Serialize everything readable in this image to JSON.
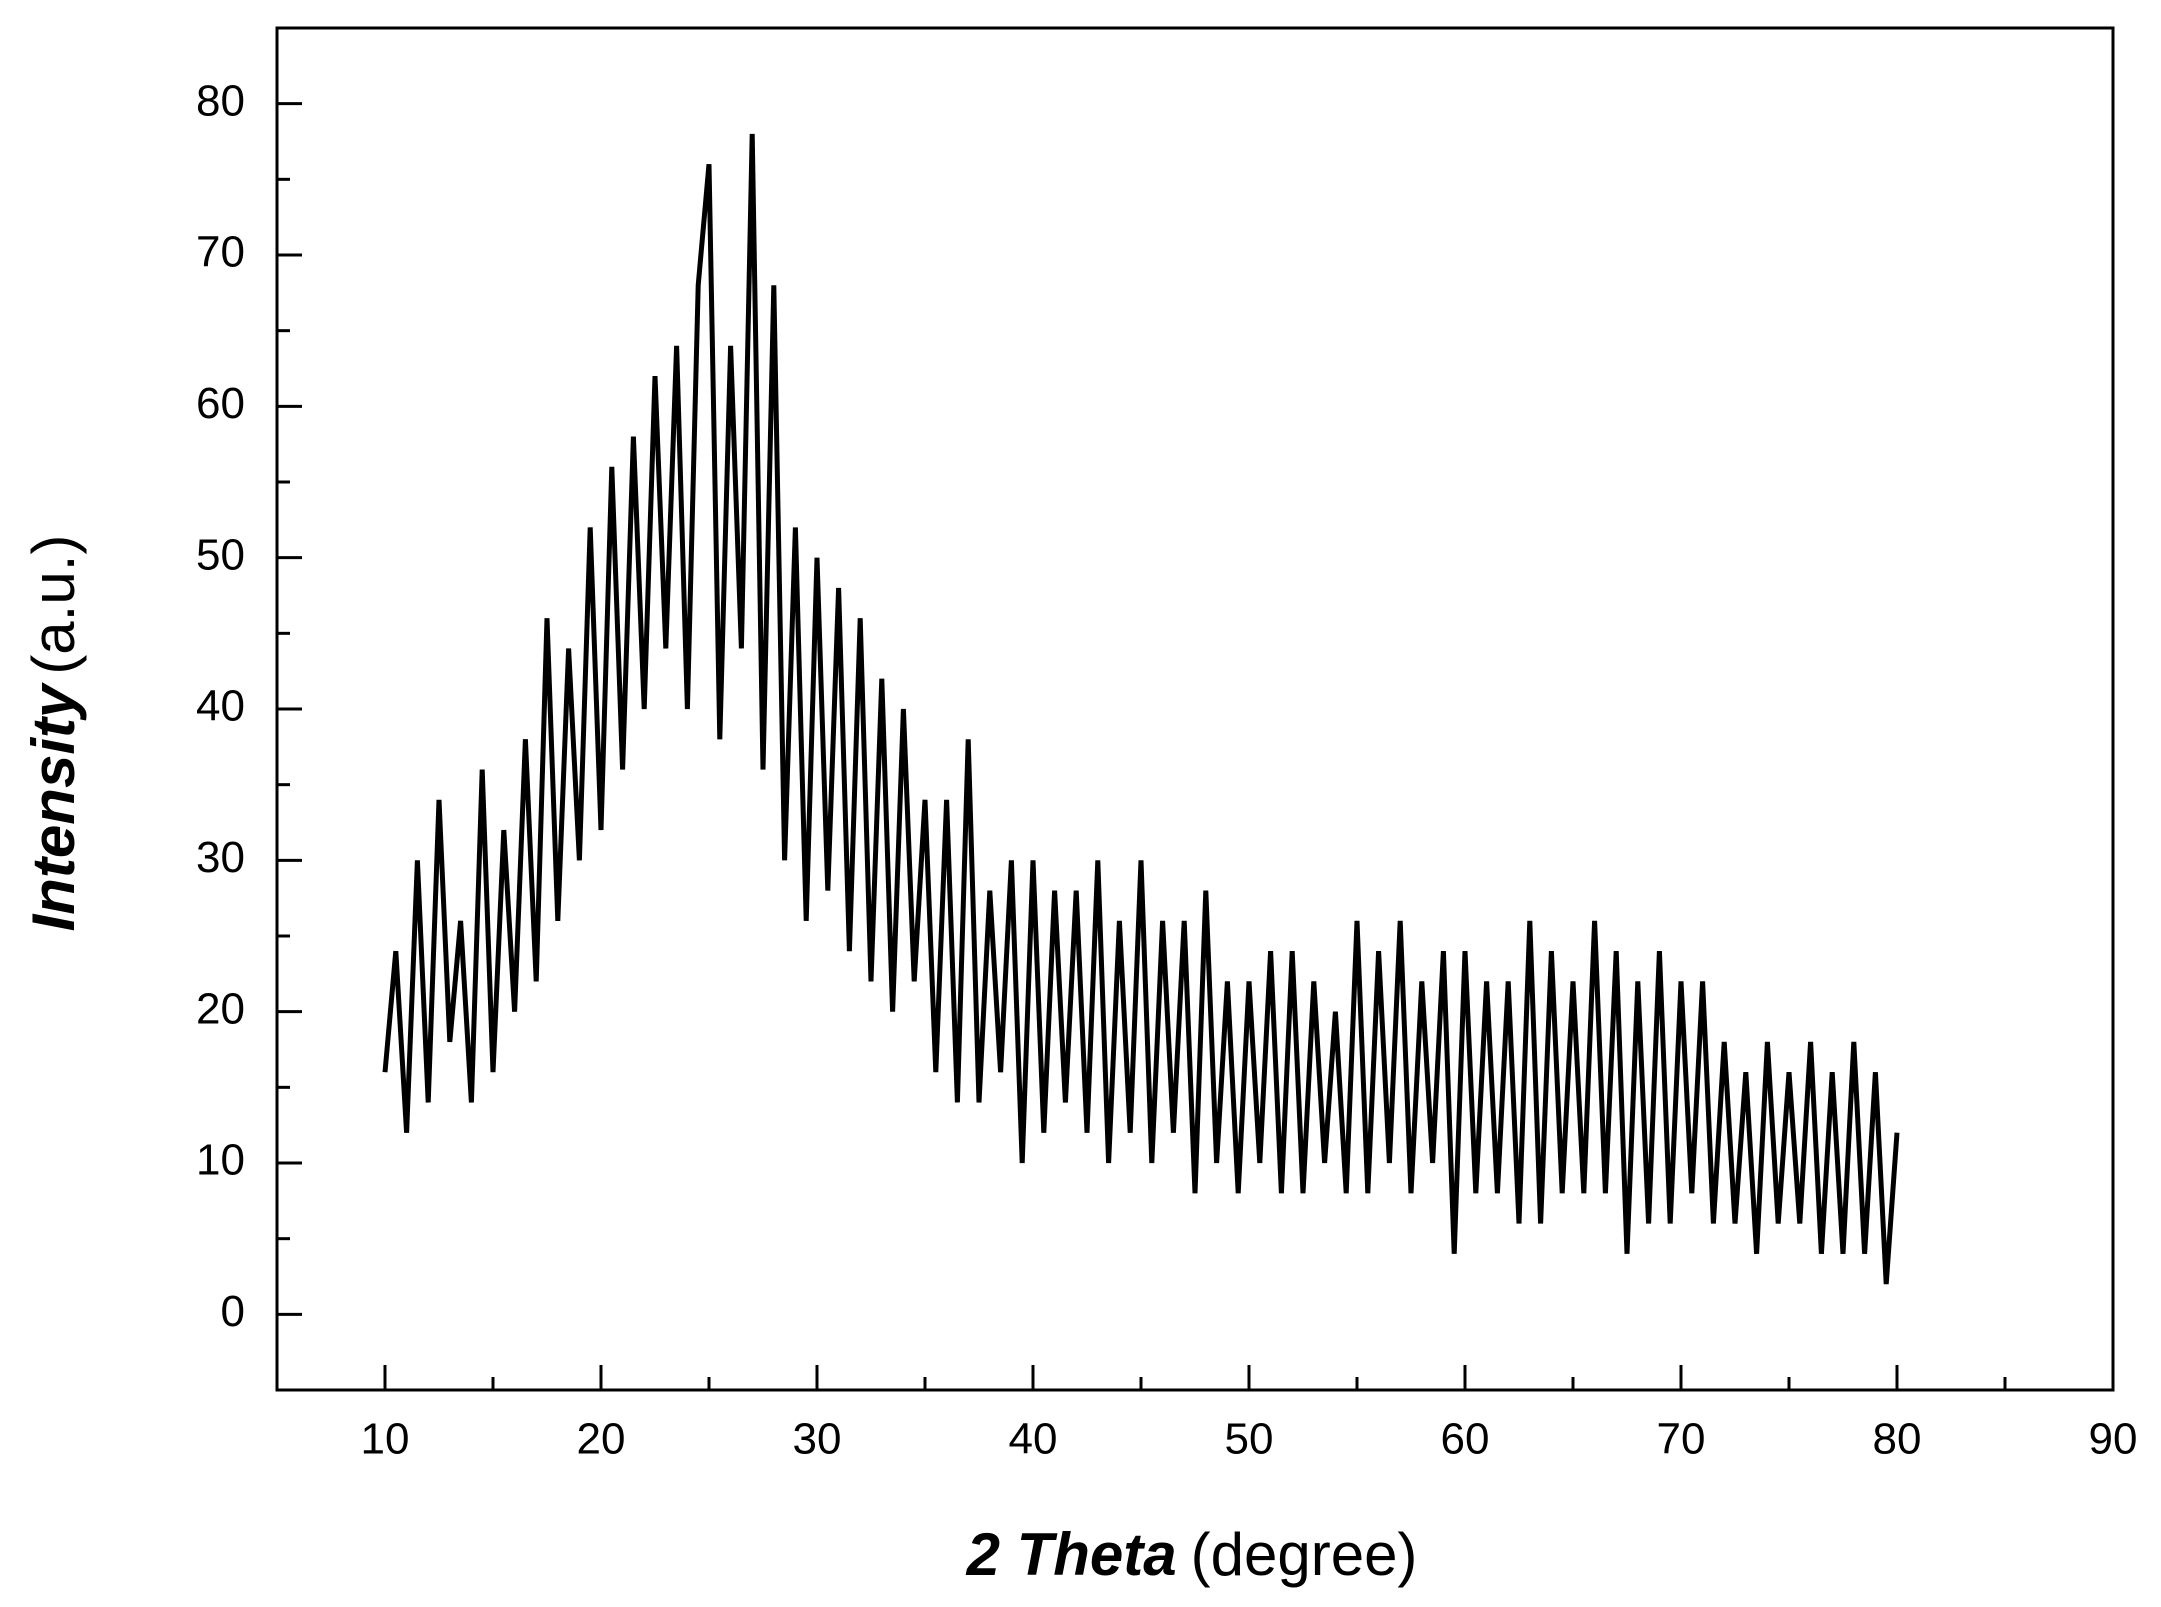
{
  "chart_data": {
    "type": "line",
    "x_label": "2 Theta",
    "x_label_unit": "(degree)",
    "y_label": "Intensity",
    "y_label_unit": "(a.u.)",
    "xlim": [
      5,
      90
    ],
    "xticks": [
      10,
      20,
      30,
      40,
      50,
      60,
      70,
      80,
      90
    ],
    "xminorticks": [
      15,
      25,
      35,
      45,
      55,
      65,
      75,
      85
    ],
    "ylim": [
      -5,
      85
    ],
    "yticks": [
      0,
      10,
      20,
      30,
      40,
      50,
      60,
      70,
      80
    ],
    "yminorticks": [
      5,
      15,
      25,
      35,
      45,
      55,
      65,
      75
    ],
    "grid": false,
    "x": [
      10,
      10.5,
      11,
      11.5,
      12,
      12.5,
      13,
      13.5,
      14,
      14.5,
      15,
      15.5,
      16,
      16.5,
      17,
      17.5,
      18,
      18.5,
      19,
      19.5,
      20,
      20.5,
      21,
      21.5,
      22,
      22.5,
      23,
      23.5,
      24,
      24.5,
      25,
      25.5,
      26,
      26.5,
      27,
      27.5,
      28,
      28.5,
      29,
      29.5,
      30,
      30.5,
      31,
      31.5,
      32,
      32.5,
      33,
      33.5,
      34,
      34.5,
      35,
      35.5,
      36,
      36.5,
      37,
      37.5,
      38,
      38.5,
      39,
      39.5,
      40,
      40.5,
      41,
      41.5,
      42,
      42.5,
      43,
      43.5,
      44,
      44.5,
      45,
      45.5,
      46,
      46.5,
      47,
      47.5,
      48,
      48.5,
      49,
      49.5,
      50,
      50.5,
      51,
      51.5,
      52,
      52.5,
      53,
      53.5,
      54,
      54.5,
      55,
      55.5,
      56,
      56.5,
      57,
      57.5,
      58,
      58.5,
      59,
      59.5,
      60,
      60.5,
      61,
      61.5,
      62,
      62.5,
      63,
      63.5,
      64,
      64.5,
      65,
      65.5,
      66,
      66.5,
      67,
      67.5,
      68,
      68.5,
      69,
      69.5,
      70,
      70.5,
      71,
      71.5,
      72,
      72.5,
      73,
      73.5,
      74,
      74.5,
      75,
      75.5,
      76,
      76.5,
      77,
      77.5,
      78,
      78.5,
      79,
      79.5,
      80
    ],
    "series": [
      {
        "color": "#000000",
        "values": [
          16,
          24,
          12,
          30,
          14,
          34,
          18,
          26,
          14,
          36,
          16,
          32,
          20,
          38,
          22,
          46,
          26,
          44,
          30,
          52,
          32,
          56,
          36,
          58,
          40,
          62,
          44,
          64,
          40,
          68,
          76,
          38,
          64,
          44,
          78,
          36,
          68,
          30,
          52,
          26,
          50,
          28,
          48,
          24,
          46,
          22,
          42,
          20,
          40,
          22,
          34,
          16,
          34,
          14,
          38,
          14,
          28,
          16,
          30,
          10,
          30,
          12,
          28,
          14,
          28,
          12,
          30,
          10,
          26,
          12,
          30,
          10,
          26,
          12,
          26,
          8,
          28,
          10,
          22,
          8,
          22,
          10,
          24,
          8,
          24,
          8,
          22,
          10,
          20,
          8,
          26,
          8,
          24,
          10,
          26,
          8,
          22,
          10,
          24,
          4,
          24,
          8,
          22,
          8,
          22,
          6,
          26,
          6,
          24,
          8,
          22,
          8,
          26,
          8,
          24,
          4,
          22,
          6,
          24,
          6,
          22,
          8,
          22,
          6,
          18,
          6,
          16,
          4,
          18,
          6,
          16,
          6,
          18,
          4,
          16,
          4,
          18,
          4,
          16,
          2,
          12
        ]
      }
    ]
  }
}
